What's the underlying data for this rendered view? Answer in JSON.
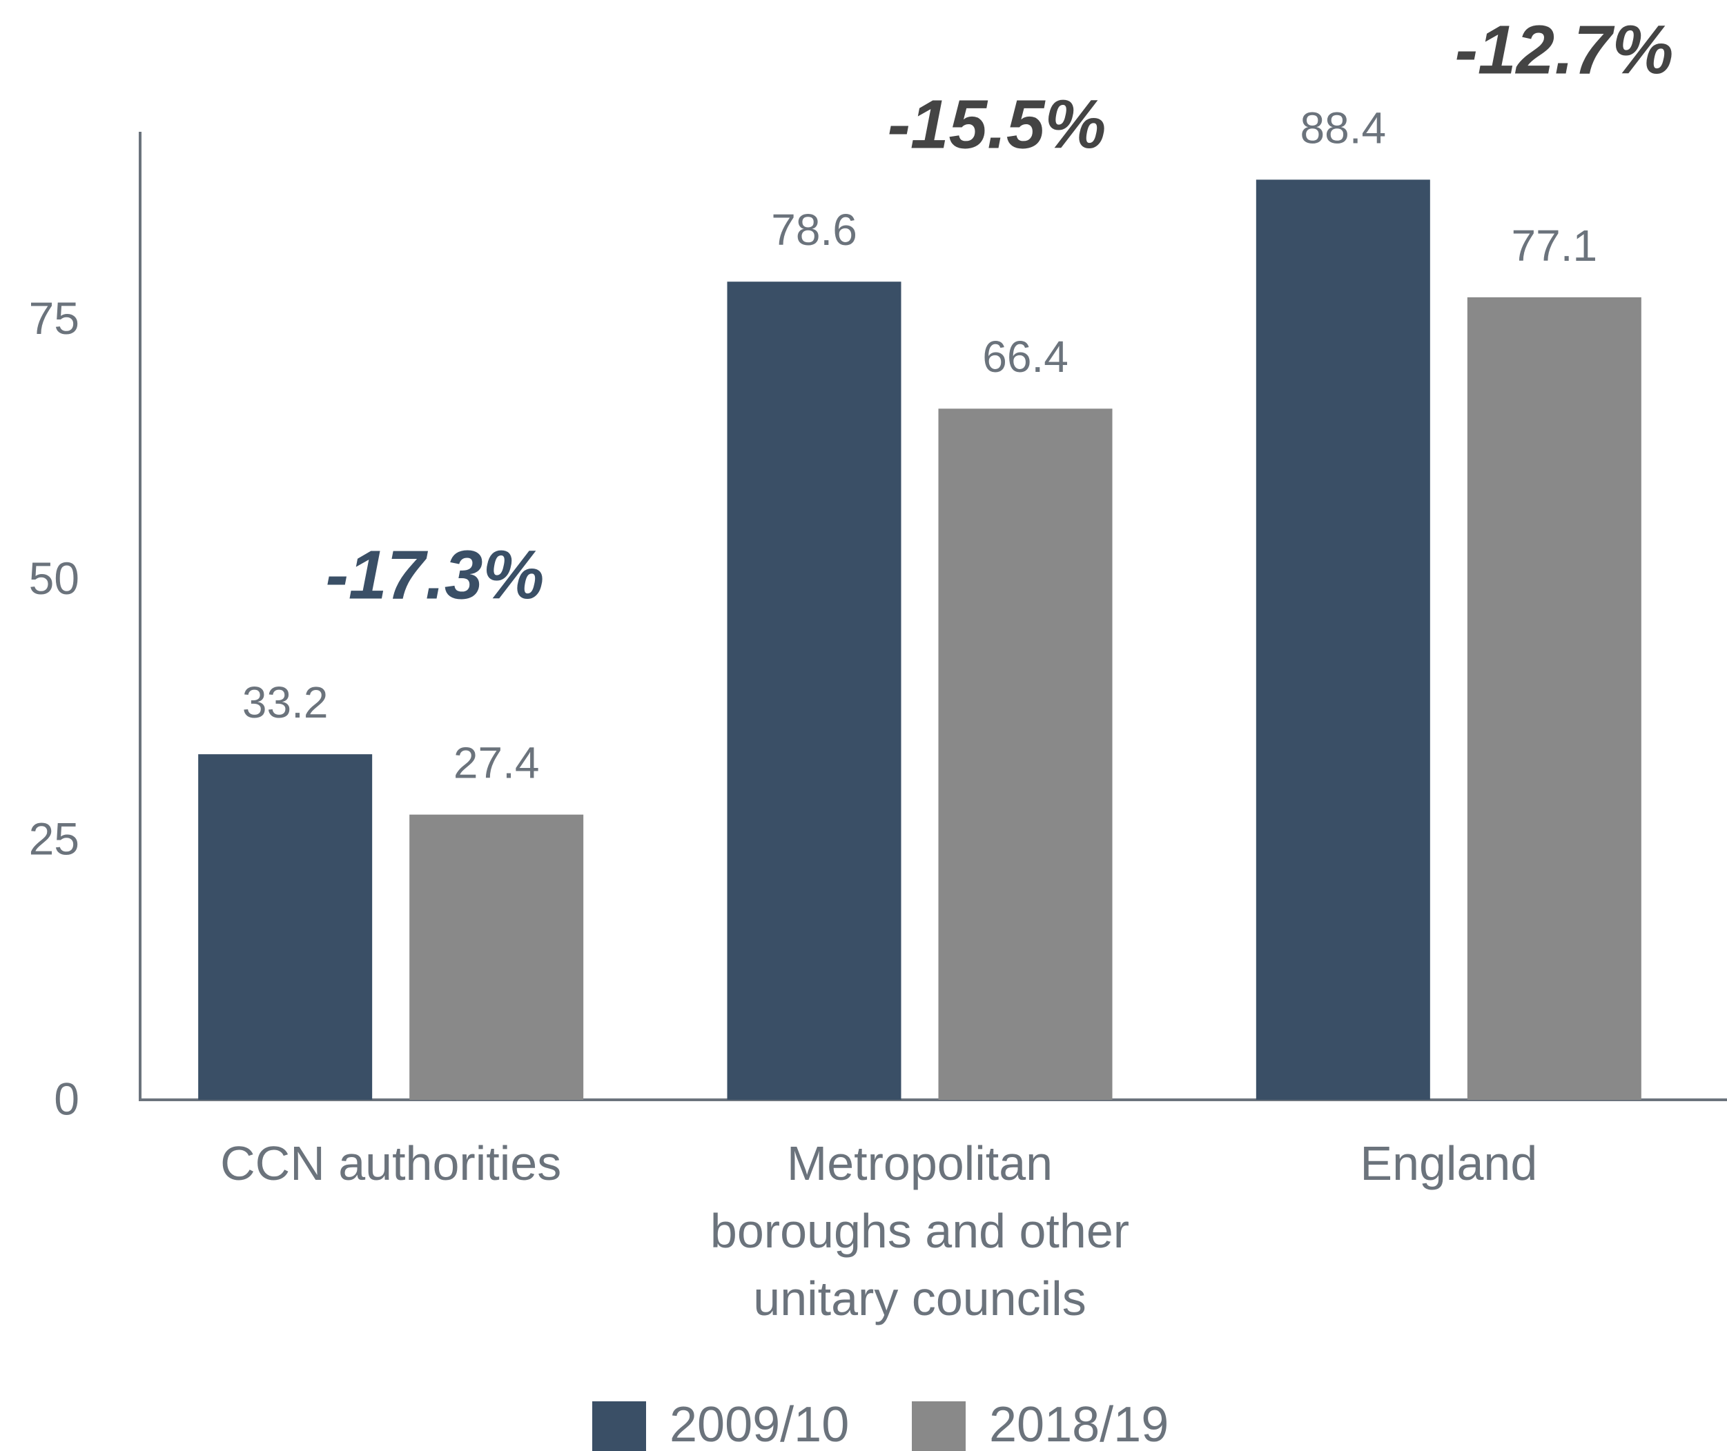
{
  "chart_data": {
    "type": "bar",
    "categories": [
      "CCN authorities",
      "Metropolitan boroughs and other unitary councils",
      "England"
    ],
    "series": [
      {
        "name": "2009/10",
        "color": "#3a4f66",
        "values": [
          33.2,
          78.6,
          88.4
        ]
      },
      {
        "name": "2018/19",
        "color": "#898989",
        "values": [
          27.4,
          66.4,
          77.1
        ]
      }
    ],
    "annotations": [
      "-17.3%",
      "-15.5%",
      "-12.7%"
    ],
    "ylim": [
      0,
      93
    ],
    "yticks": [
      0,
      25,
      50,
      75
    ],
    "grid": false
  }
}
